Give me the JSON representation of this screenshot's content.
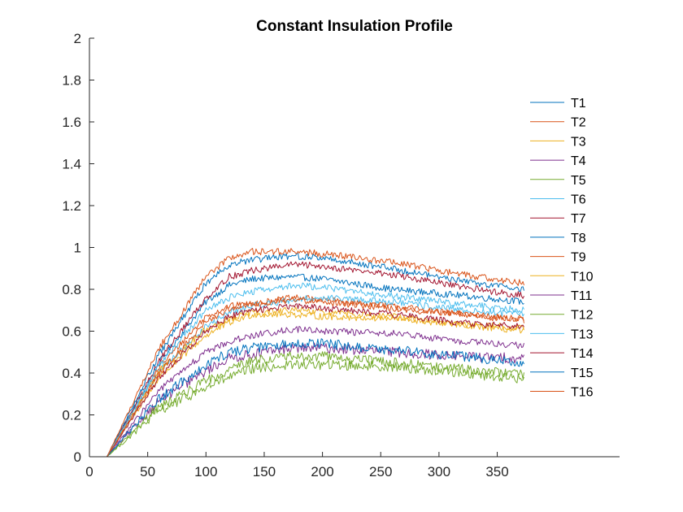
{
  "chart_data": {
    "type": "line",
    "title": "Constant Insulation Profile",
    "xlabel": "",
    "ylabel": "",
    "xlim": [
      0,
      455
    ],
    "ylim": [
      0,
      2
    ],
    "xticks": [
      0,
      50,
      100,
      150,
      200,
      250,
      300,
      350
    ],
    "yticks": [
      0,
      0.2,
      0.4,
      0.6,
      0.8,
      1,
      1.2,
      1.4,
      1.6,
      1.8,
      2
    ],
    "xtick_labels": [
      "0",
      "50",
      "100",
      "150",
      "200",
      "250",
      "300",
      "350"
    ],
    "ytick_labels": [
      "0",
      "0.2",
      "0.4",
      "0.6",
      "0.8",
      "1",
      "1.2",
      "1.4",
      "1.6",
      "1.8",
      "2"
    ],
    "grid": false,
    "legend_position": "right",
    "x_start": 15,
    "x_end": 373,
    "series": [
      {
        "name": "T1",
        "color": "#0072BD",
        "points": [
          [
            15,
            0.0
          ],
          [
            60,
            0.45
          ],
          [
            100,
            0.74
          ],
          [
            120,
            0.82
          ],
          [
            140,
            0.85
          ],
          [
            175,
            0.86
          ],
          [
            200,
            0.85
          ],
          [
            260,
            0.8
          ],
          [
            320,
            0.77
          ],
          [
            373,
            0.74
          ]
        ]
      },
      {
        "name": "T2",
        "color": "#D95319",
        "points": [
          [
            15,
            0.0
          ],
          [
            60,
            0.43
          ],
          [
            100,
            0.67
          ],
          [
            120,
            0.72
          ],
          [
            140,
            0.73
          ],
          [
            175,
            0.76
          ],
          [
            200,
            0.75
          ],
          [
            260,
            0.72
          ],
          [
            320,
            0.68
          ],
          [
            373,
            0.65
          ]
        ]
      },
      {
        "name": "T3",
        "color": "#EDB120",
        "points": [
          [
            15,
            0.0
          ],
          [
            60,
            0.38
          ],
          [
            100,
            0.58
          ],
          [
            120,
            0.64
          ],
          [
            140,
            0.68
          ],
          [
            175,
            0.68
          ],
          [
            200,
            0.67
          ],
          [
            260,
            0.66
          ],
          [
            320,
            0.63
          ],
          [
            373,
            0.6
          ]
        ]
      },
      {
        "name": "T4",
        "color": "#7E2F8E",
        "points": [
          [
            15,
            0.0
          ],
          [
            60,
            0.27
          ],
          [
            100,
            0.41
          ],
          [
            120,
            0.47
          ],
          [
            140,
            0.49
          ],
          [
            175,
            0.52
          ],
          [
            200,
            0.52
          ],
          [
            260,
            0.5
          ],
          [
            320,
            0.48
          ],
          [
            373,
            0.47
          ]
        ]
      },
      {
        "name": "T5",
        "color": "#77AC30",
        "points": [
          [
            15,
            0.0
          ],
          [
            60,
            0.22
          ],
          [
            100,
            0.33
          ],
          [
            120,
            0.38
          ],
          [
            140,
            0.42
          ],
          [
            175,
            0.44
          ],
          [
            200,
            0.44
          ],
          [
            260,
            0.43
          ],
          [
            320,
            0.4
          ],
          [
            373,
            0.37
          ]
        ]
      },
      {
        "name": "T6",
        "color": "#4DBEEE",
        "points": [
          [
            15,
            0.0
          ],
          [
            60,
            0.41
          ],
          [
            100,
            0.62
          ],
          [
            120,
            0.69
          ],
          [
            140,
            0.72
          ],
          [
            175,
            0.75
          ],
          [
            200,
            0.76
          ],
          [
            260,
            0.74
          ],
          [
            320,
            0.7
          ],
          [
            373,
            0.68
          ]
        ]
      },
      {
        "name": "T7",
        "color": "#A2142F",
        "points": [
          [
            15,
            0.0
          ],
          [
            60,
            0.46
          ],
          [
            100,
            0.76
          ],
          [
            120,
            0.86
          ],
          [
            140,
            0.89
          ],
          [
            175,
            0.92
          ],
          [
            200,
            0.91
          ],
          [
            260,
            0.87
          ],
          [
            320,
            0.81
          ],
          [
            373,
            0.77
          ]
        ]
      },
      {
        "name": "T8",
        "color": "#0072BD",
        "points": [
          [
            15,
            0.0
          ],
          [
            60,
            0.49
          ],
          [
            100,
            0.83
          ],
          [
            120,
            0.92
          ],
          [
            140,
            0.94
          ],
          [
            175,
            0.96
          ],
          [
            200,
            0.95
          ],
          [
            260,
            0.9
          ],
          [
            320,
            0.84
          ],
          [
            373,
            0.8
          ]
        ]
      },
      {
        "name": "T9",
        "color": "#D95319",
        "points": [
          [
            15,
            0.0
          ],
          [
            60,
            0.52
          ],
          [
            100,
            0.86
          ],
          [
            120,
            0.95
          ],
          [
            140,
            0.98
          ],
          [
            175,
            0.98
          ],
          [
            200,
            0.97
          ],
          [
            260,
            0.93
          ],
          [
            320,
            0.87
          ],
          [
            373,
            0.83
          ]
        ]
      },
      {
        "name": "T10",
        "color": "#EDB120",
        "points": [
          [
            15,
            0.0
          ],
          [
            60,
            0.41
          ],
          [
            100,
            0.61
          ],
          [
            120,
            0.66
          ],
          [
            140,
            0.69
          ],
          [
            175,
            0.7
          ],
          [
            200,
            0.69
          ],
          [
            260,
            0.67
          ],
          [
            320,
            0.63
          ],
          [
            373,
            0.62
          ]
        ]
      },
      {
        "name": "T11",
        "color": "#7E2F8E",
        "points": [
          [
            15,
            0.0
          ],
          [
            60,
            0.32
          ],
          [
            100,
            0.5
          ],
          [
            120,
            0.55
          ],
          [
            140,
            0.58
          ],
          [
            175,
            0.61
          ],
          [
            200,
            0.6
          ],
          [
            260,
            0.59
          ],
          [
            320,
            0.55
          ],
          [
            373,
            0.53
          ]
        ]
      },
      {
        "name": "T12",
        "color": "#77AC30",
        "points": [
          [
            15,
            0.0
          ],
          [
            60,
            0.24
          ],
          [
            100,
            0.36
          ],
          [
            120,
            0.42
          ],
          [
            140,
            0.46
          ],
          [
            175,
            0.48
          ],
          [
            200,
            0.48
          ],
          [
            260,
            0.45
          ],
          [
            320,
            0.42
          ],
          [
            373,
            0.39
          ]
        ]
      },
      {
        "name": "T13",
        "color": "#4DBEEE",
        "points": [
          [
            15,
            0.0
          ],
          [
            60,
            0.44
          ],
          [
            100,
            0.7
          ],
          [
            120,
            0.76
          ],
          [
            140,
            0.79
          ],
          [
            175,
            0.82
          ],
          [
            200,
            0.81
          ],
          [
            260,
            0.77
          ],
          [
            320,
            0.73
          ],
          [
            373,
            0.7
          ]
        ]
      },
      {
        "name": "T14",
        "color": "#A2142F",
        "points": [
          [
            15,
            0.0
          ],
          [
            60,
            0.38
          ],
          [
            100,
            0.6
          ],
          [
            120,
            0.67
          ],
          [
            140,
            0.7
          ],
          [
            175,
            0.72
          ],
          [
            200,
            0.71
          ],
          [
            260,
            0.68
          ],
          [
            320,
            0.64
          ],
          [
            373,
            0.62
          ]
        ]
      },
      {
        "name": "T15",
        "color": "#0072BD",
        "points": [
          [
            15,
            0.0
          ],
          [
            60,
            0.28
          ],
          [
            100,
            0.44
          ],
          [
            120,
            0.5
          ],
          [
            140,
            0.52
          ],
          [
            175,
            0.54
          ],
          [
            200,
            0.54
          ],
          [
            260,
            0.51
          ],
          [
            320,
            0.48
          ],
          [
            373,
            0.45
          ]
        ]
      },
      {
        "name": "T16",
        "color": "#D95319",
        "points": [
          [
            15,
            0.0
          ],
          [
            60,
            0.4
          ],
          [
            100,
            0.64
          ],
          [
            120,
            0.71
          ],
          [
            140,
            0.73
          ],
          [
            175,
            0.75
          ],
          [
            200,
            0.74
          ],
          [
            260,
            0.71
          ],
          [
            320,
            0.68
          ],
          [
            373,
            0.66
          ]
        ]
      }
    ]
  }
}
